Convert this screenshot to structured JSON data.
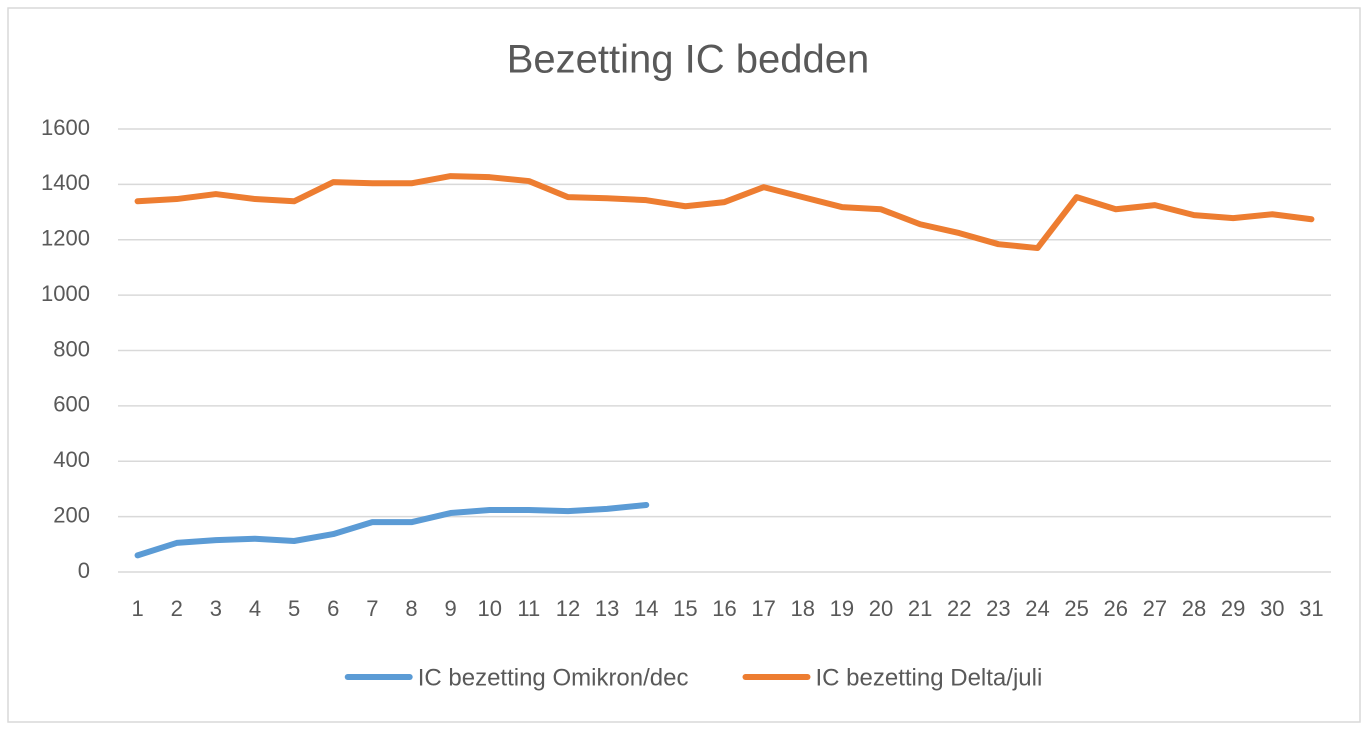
{
  "chart_data": {
    "type": "line",
    "title": "Bezetting IC bedden",
    "categories": [
      1,
      2,
      3,
      4,
      5,
      6,
      7,
      8,
      9,
      10,
      11,
      12,
      13,
      14,
      15,
      16,
      17,
      18,
      19,
      20,
      21,
      22,
      23,
      24,
      25,
      26,
      27,
      28,
      29,
      30,
      31
    ],
    "series": [
      {
        "name": "IC bezetting Omikron/dec",
        "color": "#5b9bd5",
        "values": [
          60,
          105,
          115,
          120,
          112,
          137,
          180,
          180,
          213,
          224,
          224,
          220,
          228,
          242,
          null,
          null,
          null,
          null,
          null,
          null,
          null,
          null,
          null,
          null,
          null,
          null,
          null,
          null,
          null,
          null,
          null
        ]
      },
      {
        "name": "IC bezetting Delta/juli",
        "color": "#ed7d31",
        "values": [
          1339,
          1347,
          1365,
          1347,
          1339,
          1408,
          1404,
          1404,
          1430,
          1426,
          1412,
          1354,
          1350,
          1343,
          1321,
          1336,
          1390,
          1354,
          1318,
          1310,
          1256,
          1224,
          1184,
          1170,
          1354,
          1310,
          1325,
          1289,
          1278,
          1292,
          1274
        ]
      }
    ],
    "ylim": [
      0,
      1600
    ],
    "yticks": [
      0,
      200,
      400,
      600,
      800,
      1000,
      1200,
      1400,
      1600
    ],
    "grid": true,
    "legend": "bottom"
  }
}
